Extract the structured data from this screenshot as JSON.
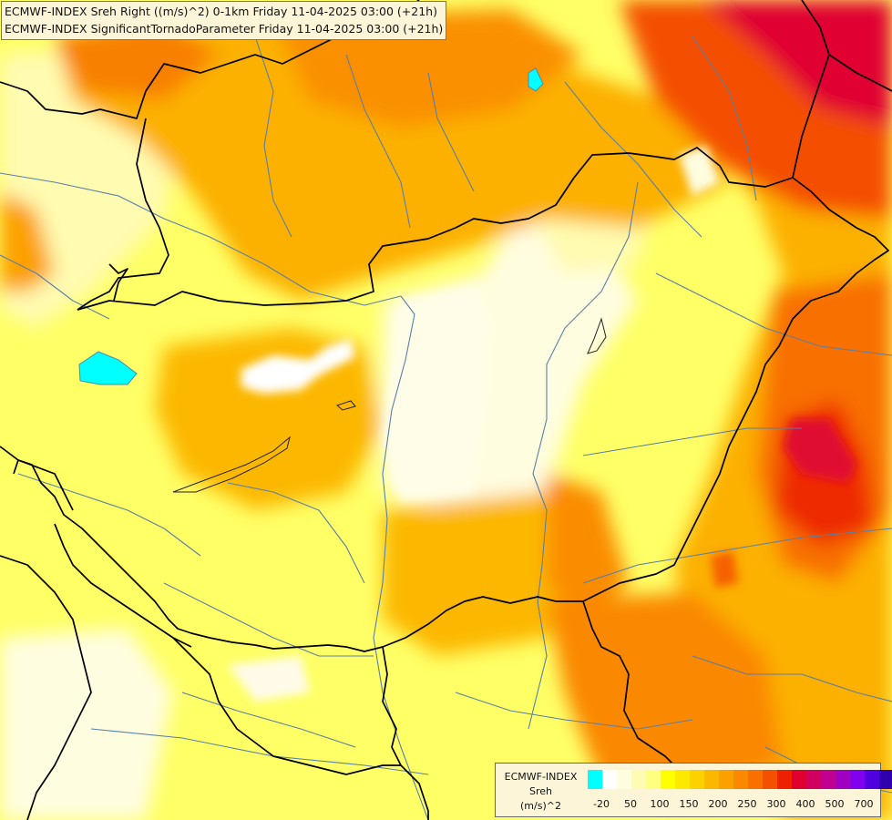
{
  "title": {
    "line1": "ECMWF-INDEX Sreh Right ((m/s)^2) 0-1km Friday 11-04-2025 03:00 (+21h)",
    "line2": "ECMWF-INDEX SignificantTornadoParameter Friday 11-04-2025 03:00 (+21h)"
  },
  "legend": {
    "label_lines": [
      "ECMWF-INDEX",
      "Sreh",
      "(m/s)^2"
    ],
    "colors": [
      "#00ffff",
      "#ffffff",
      "#fffde0",
      "#fffbb0",
      "#ffff80",
      "#ffff00",
      "#fde800",
      "#fdd000",
      "#fcb800",
      "#fca000",
      "#fa8800",
      "#f87000",
      "#f45000",
      "#ee2000",
      "#e00030",
      "#d00060",
      "#c00090",
      "#a000c0",
      "#8000f0",
      "#5000e0",
      "#3000b0",
      "#000080"
    ],
    "ticks": [
      "-20",
      "50",
      "100",
      "150",
      "200",
      "250",
      "300",
      "400",
      "500",
      "700"
    ]
  },
  "colors": {
    "background": "#ffff66",
    "country_border": "#000000",
    "river_line": "#5a7fa8",
    "lake": "#00ffff"
  }
}
